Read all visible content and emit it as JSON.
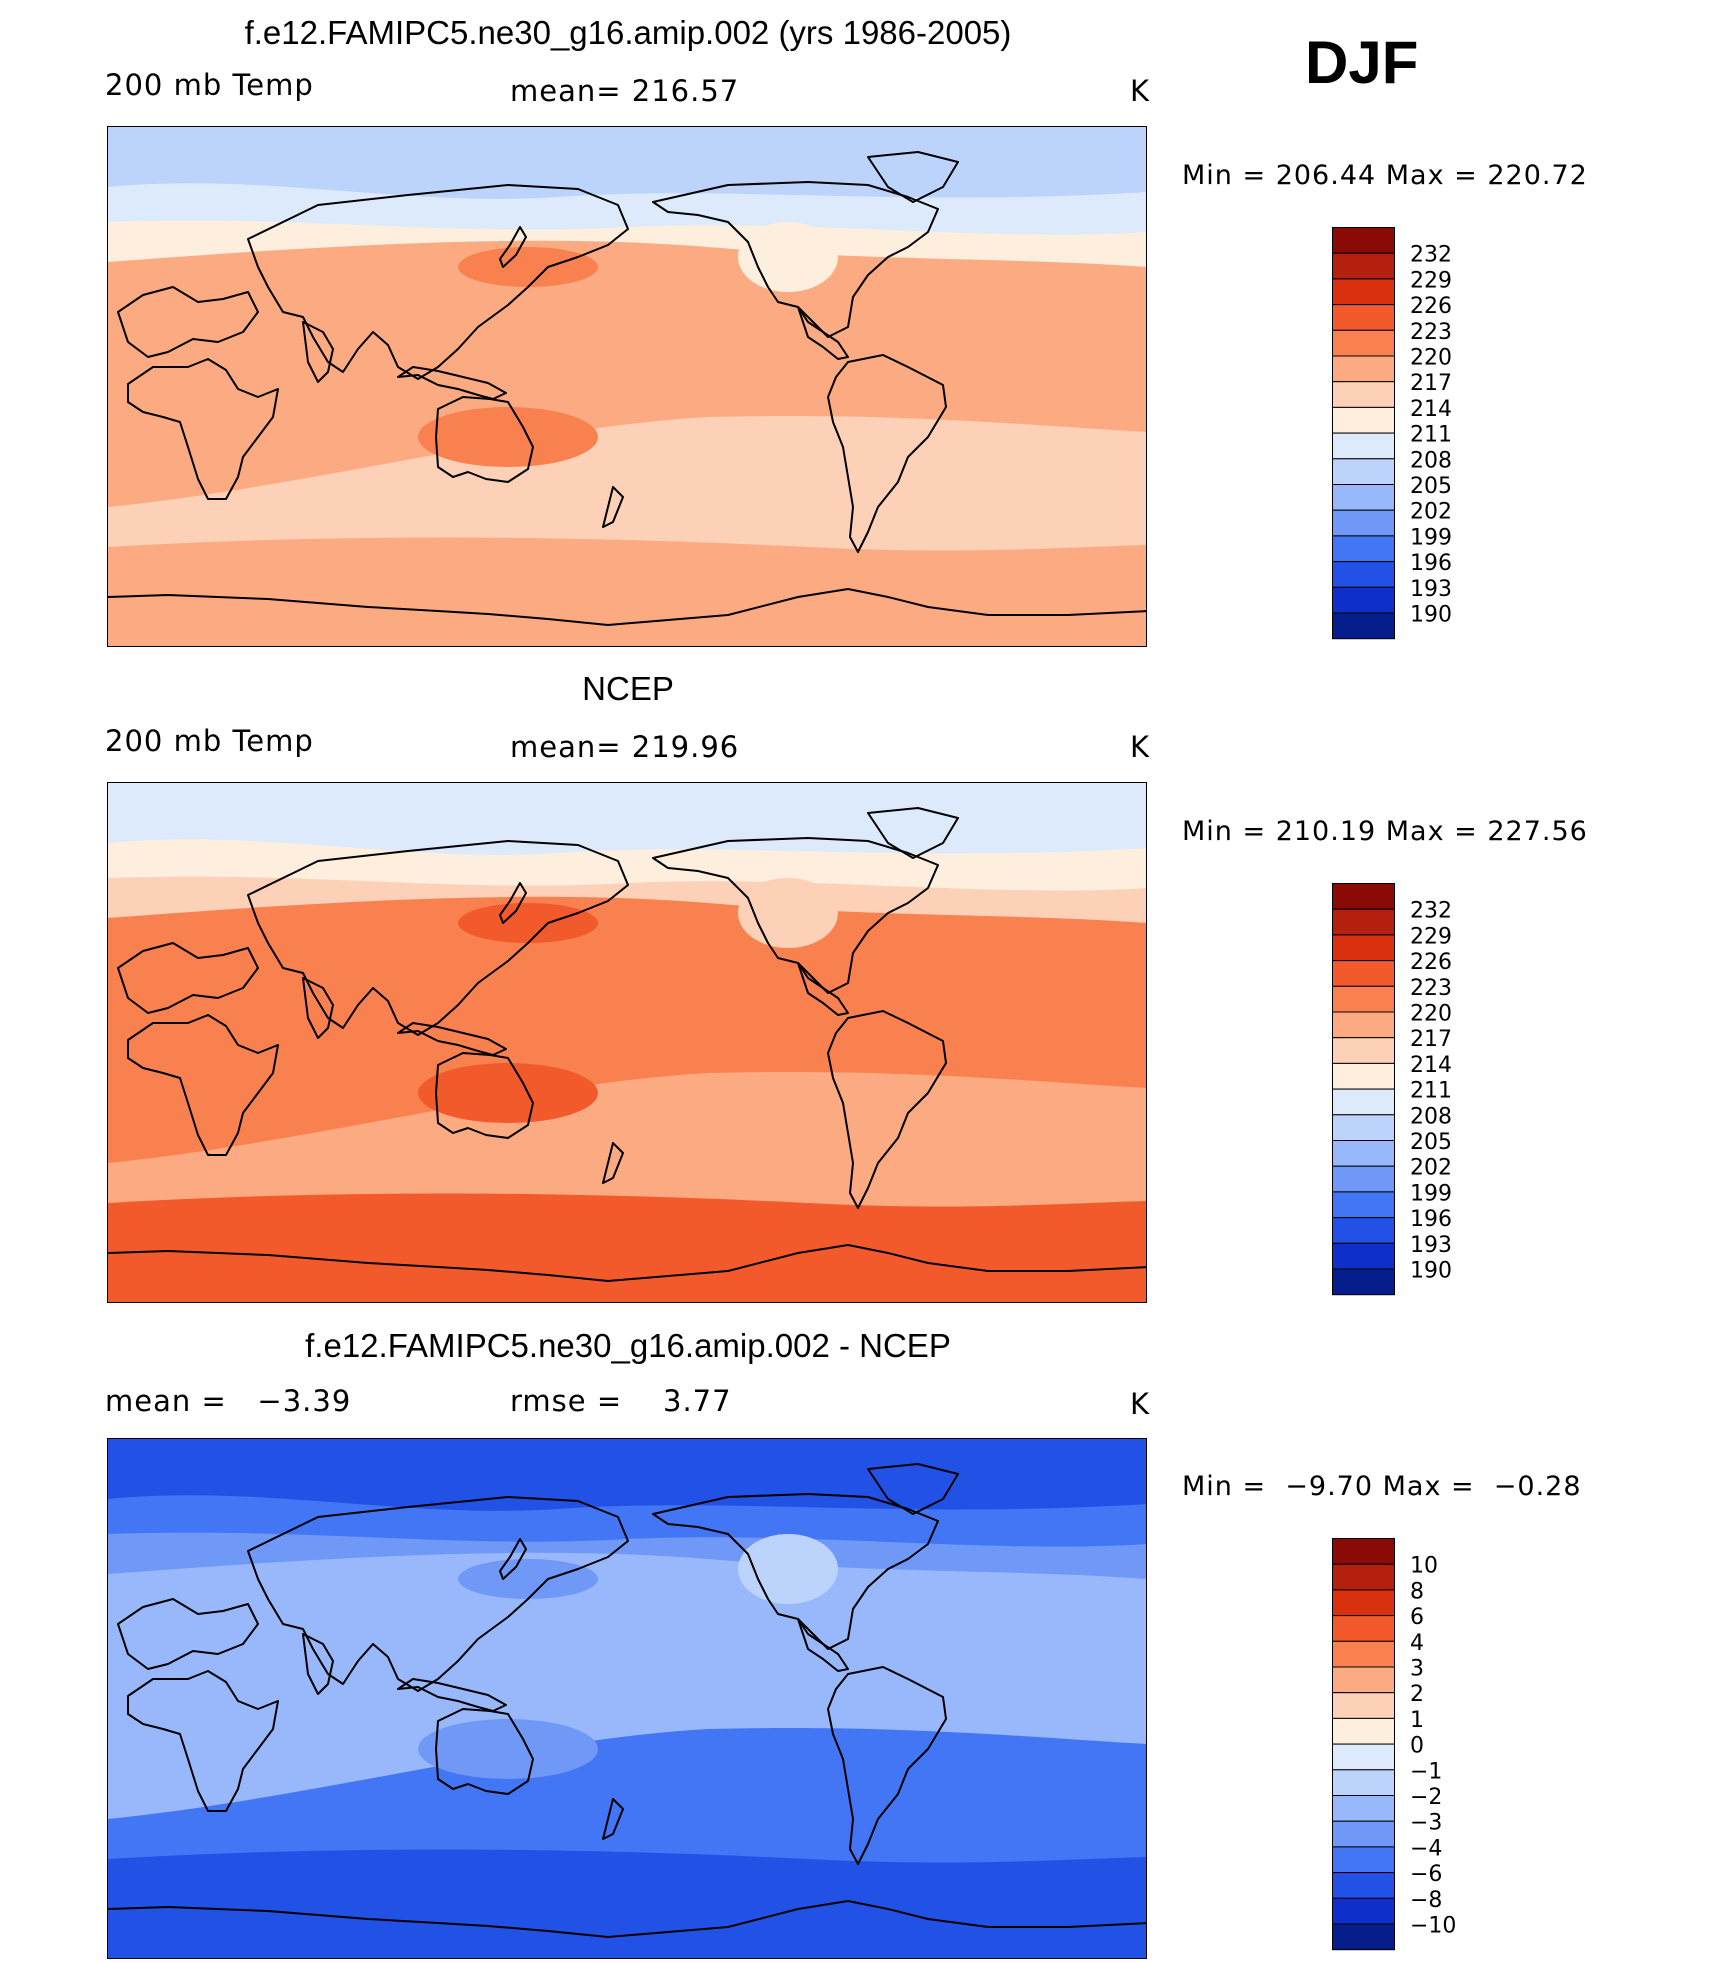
{
  "season": "DJF",
  "panels": [
    {
      "title": "f.e12.FAMIPC5.ne30_g16.amip.002 (yrs 1986-2005)",
      "left_label": "200 mb Temp",
      "center_label": "mean= 216.57",
      "units": "K",
      "minmax": "Min = 206.44 Max = 220.72",
      "colorbar": {
        "colors": [
          "#8a0a06",
          "#b3200c",
          "#d9300d",
          "#f25a2c",
          "#f98150",
          "#fbaa82",
          "#fdd0b8",
          "#fdeedd",
          "#ddeafb",
          "#bcd3fb",
          "#98b8fb",
          "#6f98f7",
          "#4276f4",
          "#2251e6",
          "#0e2fc9",
          "#061e8c"
        ],
        "labels": [
          "232",
          "229",
          "226",
          "223",
          "220",
          "217",
          "214",
          "211",
          "208",
          "205",
          "202",
          "199",
          "196",
          "193",
          "190"
        ]
      },
      "field_colors": {
        "band_north": "#bcd3fb",
        "band_north_mid": "#ddeafb",
        "band_mid": "#fdeedd",
        "band_main": "#fbaa82",
        "band_south": "#fdd0b8",
        "band_far_south": "#fbaa82",
        "blob_warm": "#f98150",
        "blob_light": "#fdeedd"
      }
    },
    {
      "title": "NCEP",
      "left_label": "200 mb Temp",
      "center_label": "mean= 219.96",
      "units": "K",
      "minmax": "Min = 210.19 Max = 227.56",
      "colorbar": {
        "colors": [
          "#8a0a06",
          "#b3200c",
          "#d9300d",
          "#f25a2c",
          "#f98150",
          "#fbaa82",
          "#fdd0b8",
          "#fdeedd",
          "#ddeafb",
          "#bcd3fb",
          "#98b8fb",
          "#6f98f7",
          "#4276f4",
          "#2251e6",
          "#0e2fc9",
          "#061e8c"
        ],
        "labels": [
          "232",
          "229",
          "226",
          "223",
          "220",
          "217",
          "214",
          "211",
          "208",
          "205",
          "202",
          "199",
          "196",
          "193",
          "190"
        ]
      },
      "field_colors": {
        "band_north": "#ddeafb",
        "band_north_mid": "#fdeedd",
        "band_mid": "#fdd0b8",
        "band_main": "#f98150",
        "band_south": "#fbaa82",
        "band_far_south": "#f25a2c",
        "blob_warm": "#f25a2c",
        "blob_light": "#fdd0b8"
      }
    },
    {
      "title": "f.e12.FAMIPC5.ne30_g16.amip.002 - NCEP",
      "left_label": "mean =   −3.39",
      "center_label": "rmse =    3.77",
      "units": "K",
      "minmax": "Min =  −9.70 Max =  −0.28",
      "colorbar": {
        "colors": [
          "#8a0a06",
          "#b3200c",
          "#d9300d",
          "#f25a2c",
          "#f98150",
          "#fbaa82",
          "#fdd0b8",
          "#fdeedd",
          "#ddeafb",
          "#bcd3fb",
          "#98b8fb",
          "#6f98f7",
          "#4276f4",
          "#2251e6",
          "#0e2fc9",
          "#061e8c"
        ],
        "labels": [
          "10",
          "8",
          "6",
          "4",
          "3",
          "2",
          "1",
          "0",
          "−1",
          "−2",
          "−3",
          "−4",
          "−6",
          "−8",
          "−10"
        ]
      },
      "field_colors": {
        "band_north": "#2251e6",
        "band_north_mid": "#4276f4",
        "band_mid": "#6f98f7",
        "band_main": "#98b8fb",
        "band_south": "#4276f4",
        "band_far_south": "#2251e6",
        "blob_warm": "#6f98f7",
        "blob_light": "#bcd3fb"
      }
    }
  ]
}
